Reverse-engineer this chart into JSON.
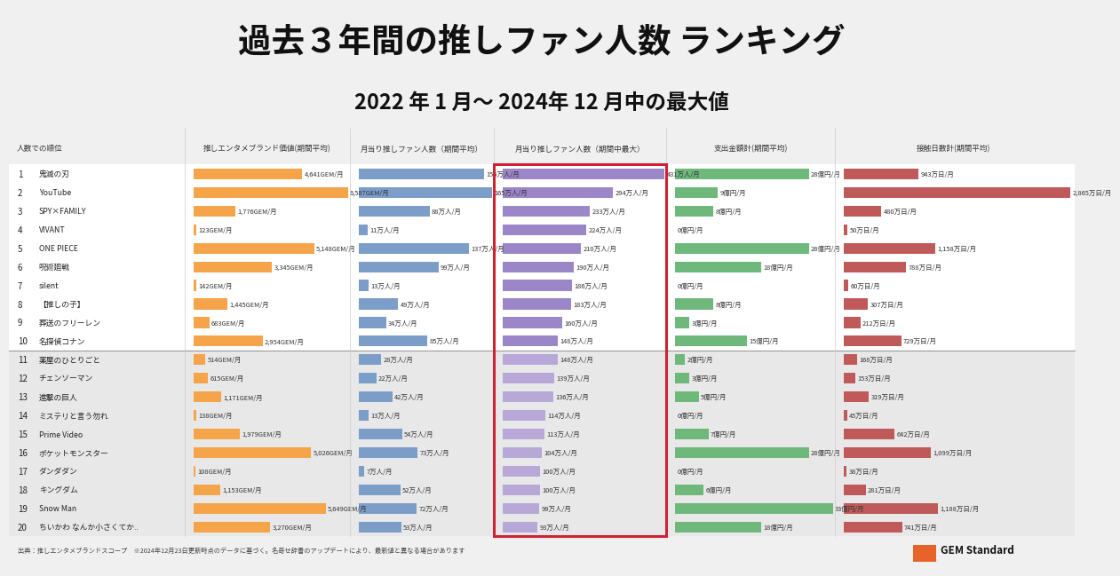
{
  "title_line1": "過去３年間の推しファン人数 ランキング",
  "title_line2": "2022 年 1 月〜 2024年 12 月中の最大値",
  "col_header_rank": "人数での順位",
  "col_header1": "推しエンタメブランド価値(期間平均)",
  "col_header2": "月当り推しファン人数（期間平均）",
  "col_header3": "月当り推しファン人数（期間中最大）",
  "col_header4": "支出金額計(期間平均)",
  "col_header5": "接触日数計(期間平均)",
  "ranks": [
    1,
    2,
    3,
    4,
    5,
    6,
    7,
    8,
    9,
    10,
    11,
    12,
    13,
    14,
    15,
    16,
    17,
    18,
    19,
    20
  ],
  "names": [
    "鬼滅の刃",
    "YouTube",
    "SPY×FAMILY",
    "VIVANT",
    "ONE PIECE",
    "呪術廻戦",
    "silent",
    "【推しの子】",
    "葬送のフリーレン",
    "名探偵コナン",
    "薬屋のひとりごと",
    "チェンソーマン",
    "進撃の巨人",
    "ミステリと言う勿れ",
    "Prime Video",
    "ポケットモンスター",
    "ダンダダン",
    "キングダム",
    "Snow Man",
    "ちいかわ なんか小さくてか.."
  ],
  "gem_values": [
    4641,
    6587,
    1776,
    123,
    5148,
    3345,
    142,
    1445,
    683,
    2954,
    514,
    615,
    1171,
    138,
    1979,
    5026,
    108,
    1153,
    5649,
    3270
  ],
  "gem_labels": [
    "4,641GEM/月",
    "6,587GEM/月",
    "1,776GEM/月",
    "123GEM/月",
    "5,148GEM/月",
    "3,345GEM/月",
    "142GEM/月",
    "1,445GEM/月",
    "683GEM/月",
    "2,954GEM/月",
    "514GEM/月",
    "615GEM/月",
    "1,171GEM/月",
    "138GEM/月",
    "1,979GEM/月",
    "5,026GEM/月",
    "108GEM/月",
    "1,153GEM/月",
    "5,649GEM/月",
    "3,270GEM/月"
  ],
  "fan_avg": [
    155,
    165,
    88,
    11,
    137,
    99,
    13,
    49,
    34,
    85,
    28,
    22,
    42,
    13,
    54,
    73,
    7,
    52,
    72,
    53
  ],
  "fan_avg_labels": [
    "155万人/月",
    "165万人/月",
    "88万人/月",
    "11万人/月",
    "137万人/月",
    "99万人/月",
    "13万人/月",
    "49万人/月",
    "34万人/月",
    "85万人/月",
    "28万人/月",
    "22万人/月",
    "42万人/月",
    "13万人/月",
    "54万人/月",
    "73万人/月",
    "7万人/月",
    "52万人/月",
    "72万人/月",
    "53万人/月"
  ],
  "fan_max": [
    431,
    294,
    233,
    224,
    210,
    190,
    186,
    183,
    160,
    148,
    148,
    139,
    136,
    114,
    113,
    104,
    100,
    100,
    99,
    93
  ],
  "fan_max_labels": [
    "431万人/月",
    "294万人/月",
    "233万人/月",
    "224万人/月",
    "210万人/月",
    "190万人/月",
    "186万人/月",
    "183万人/月",
    "160万人/月",
    "148万人/月",
    "148万人/月",
    "139万人/月",
    "136万人/月",
    "114万人/月",
    "113万人/月",
    "104万人/月",
    "100万人/月",
    "100万人/月",
    "99万人/月",
    "93万人/月"
  ],
  "spending": [
    28,
    9,
    8,
    0,
    28,
    18,
    0,
    8,
    3,
    15,
    2,
    3,
    5,
    0,
    7,
    28,
    0,
    6,
    33,
    18
  ],
  "spending_labels": [
    "28億円/月",
    "9億円/月",
    "8億円/月",
    "0億円/月",
    "28億円/月",
    "18億円/月",
    "0億円/月",
    "8億円/月",
    "3億円/月",
    "15億円/月",
    "2億円/月",
    "3億円/月",
    "5億円/月",
    "0億円/月",
    "7億円/月",
    "28億円/月",
    "0億円/月",
    "6億円/月",
    "33億円/月",
    "18億円/月"
  ],
  "contact": [
    943,
    2865,
    480,
    50,
    1158,
    788,
    60,
    307,
    212,
    729,
    168,
    153,
    319,
    45,
    642,
    1099,
    38,
    281,
    1188,
    741
  ],
  "contact_labels": [
    "943万日/月",
    "2,865万日/月",
    "480万日/月",
    "50万日/月",
    "1,158万日/月",
    "788万日/月",
    "60万日/月",
    "307万日/月",
    "212万日/月",
    "729万日/月",
    "168万日/月",
    "153万日/月",
    "319万日/月",
    "45万日/月",
    "642万日/月",
    "1,099万日/月",
    "38万日/月",
    "281万日/月",
    "1,188万日/月",
    "741万日/月"
  ],
  "bg_color": "#f0f0f0",
  "top10_bg": "#ffffff",
  "bottom10_bg": "#e8e8e8",
  "bar_color_gem": "#f5a44a",
  "bar_color_fan_avg": "#7b9dc8",
  "bar_color_fan_max_top": "#9b86c8",
  "bar_color_fan_max_bot": "#b8a8d8",
  "bar_color_spending": "#6db87a",
  "bar_color_contact": "#c05a5a",
  "highlight_box_color": "#cc2233",
  "source_text": "出典：推しエンタメブランドスコープ　※2024年12月23日更新時点のデータに基づく。名奇せ辞書のアップデートにより、最新値と異なる場合があります",
  "gem_standard_color": "#e8632a"
}
